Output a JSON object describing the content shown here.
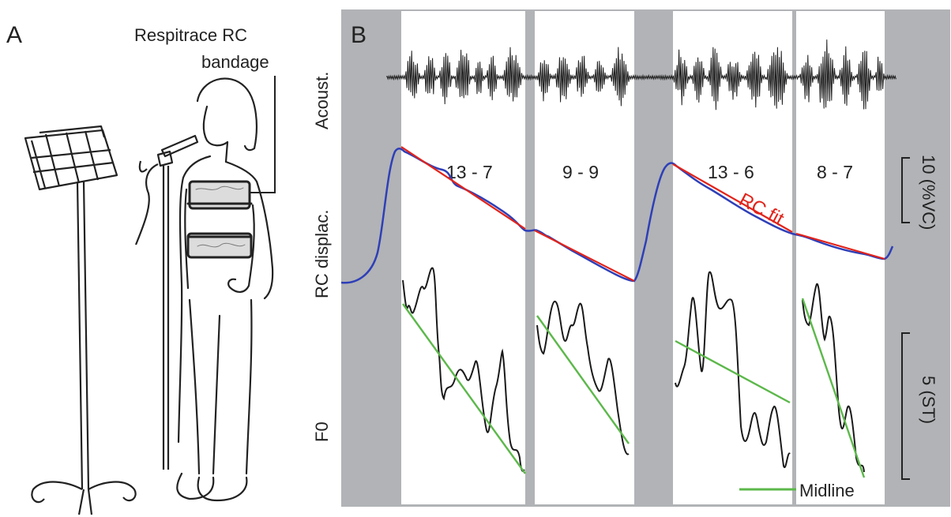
{
  "panel_a": {
    "label": "A",
    "annotation_line1": "Respitrace RC",
    "annotation_line2": "bandage"
  },
  "panel_b": {
    "label": "B",
    "row_labels": {
      "acoustic": "Acoust.",
      "rc": "RC displac.",
      "f0": "F0"
    },
    "segments": [
      {
        "label": "13 - 7"
      },
      {
        "label": "9 - 9"
      },
      {
        "label": "13 - 6"
      },
      {
        "label": "8 - 7"
      }
    ],
    "fit_label": "RC fit",
    "scale_rc": "10 (%VC)",
    "scale_f0": "5 (ST)",
    "legend_midline": "Midline",
    "colors": {
      "background": "#b1b3b6",
      "segment": "#ffffff",
      "acoustic": "#1a1a1a",
      "rc_trace": "#2e3fb8",
      "rc_fit": "#e2231a",
      "f0": "#1a1a1a",
      "midline": "#5cb84a"
    }
  }
}
